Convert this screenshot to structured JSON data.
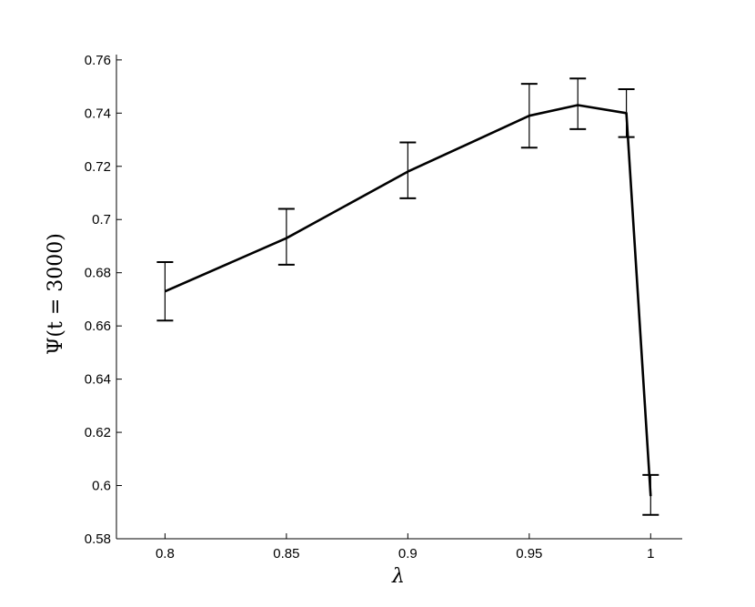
{
  "chart_data": {
    "type": "line",
    "title": "",
    "xlabel": "λ",
    "ylabel": "Ψ(t = 3000)",
    "xlim": [
      0.78,
      1.013
    ],
    "ylim": [
      0.58,
      0.762
    ],
    "grid": false,
    "legend": "none",
    "x_ticks": [
      0.8,
      0.85,
      0.9,
      0.95,
      1
    ],
    "x_tick_labels": [
      "0.8",
      "0.85",
      "0.9",
      "0.95",
      "1"
    ],
    "y_ticks": [
      0.58,
      0.6,
      0.62,
      0.64,
      0.66,
      0.68,
      0.7,
      0.72,
      0.74,
      0.76
    ],
    "y_tick_labels": [
      "0.58",
      "0.6",
      "0.62",
      "0.64",
      "0.66",
      "0.68",
      "0.7",
      "0.72",
      "0.74",
      "0.76"
    ],
    "series": [
      {
        "x": [
          0.8,
          0.85,
          0.9,
          0.95,
          0.97,
          0.99,
          1
        ],
        "y": [
          0.673,
          0.693,
          0.718,
          0.739,
          0.743,
          0.74,
          0.596
        ],
        "err_low": [
          0.662,
          0.683,
          0.708,
          0.727,
          0.734,
          0.731,
          0.589
        ],
        "err_high": [
          0.684,
          0.704,
          0.729,
          0.751,
          0.753,
          0.749,
          0.604
        ],
        "color": "#000000"
      }
    ]
  }
}
